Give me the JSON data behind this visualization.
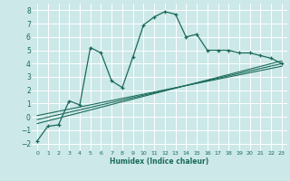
{
  "xlabel": "Humidex (Indice chaleur)",
  "bg_color": "#cce8e8",
  "grid_color": "#ffffff",
  "line_color": "#1a6b5a",
  "xlim": [
    -0.5,
    23.5
  ],
  "ylim": [
    -2.5,
    8.5
  ],
  "xticks": [
    0,
    1,
    2,
    3,
    4,
    5,
    6,
    7,
    8,
    9,
    10,
    11,
    12,
    13,
    14,
    15,
    16,
    17,
    18,
    19,
    20,
    21,
    22,
    23
  ],
  "yticks": [
    -2,
    -1,
    0,
    1,
    2,
    3,
    4,
    5,
    6,
    7,
    8
  ],
  "main_x": [
    0,
    1,
    2,
    3,
    4,
    5,
    6,
    7,
    8,
    9,
    10,
    11,
    12,
    13,
    14,
    15,
    16,
    17,
    18,
    19,
    20,
    21,
    22,
    23
  ],
  "main_y": [
    -1.8,
    -0.7,
    -0.6,
    1.2,
    0.9,
    5.2,
    4.8,
    2.7,
    2.2,
    4.5,
    6.9,
    7.5,
    7.9,
    7.7,
    6.0,
    6.2,
    5.0,
    5.0,
    5.0,
    4.8,
    4.8,
    4.6,
    4.4,
    4.0
  ],
  "line1_x": [
    0,
    23
  ],
  "line1_y": [
    -0.5,
    4.2
  ],
  "line2_x": [
    0,
    23
  ],
  "line2_y": [
    -0.2,
    4.0
  ],
  "line3_x": [
    0,
    23
  ],
  "line3_y": [
    0.1,
    3.8
  ]
}
